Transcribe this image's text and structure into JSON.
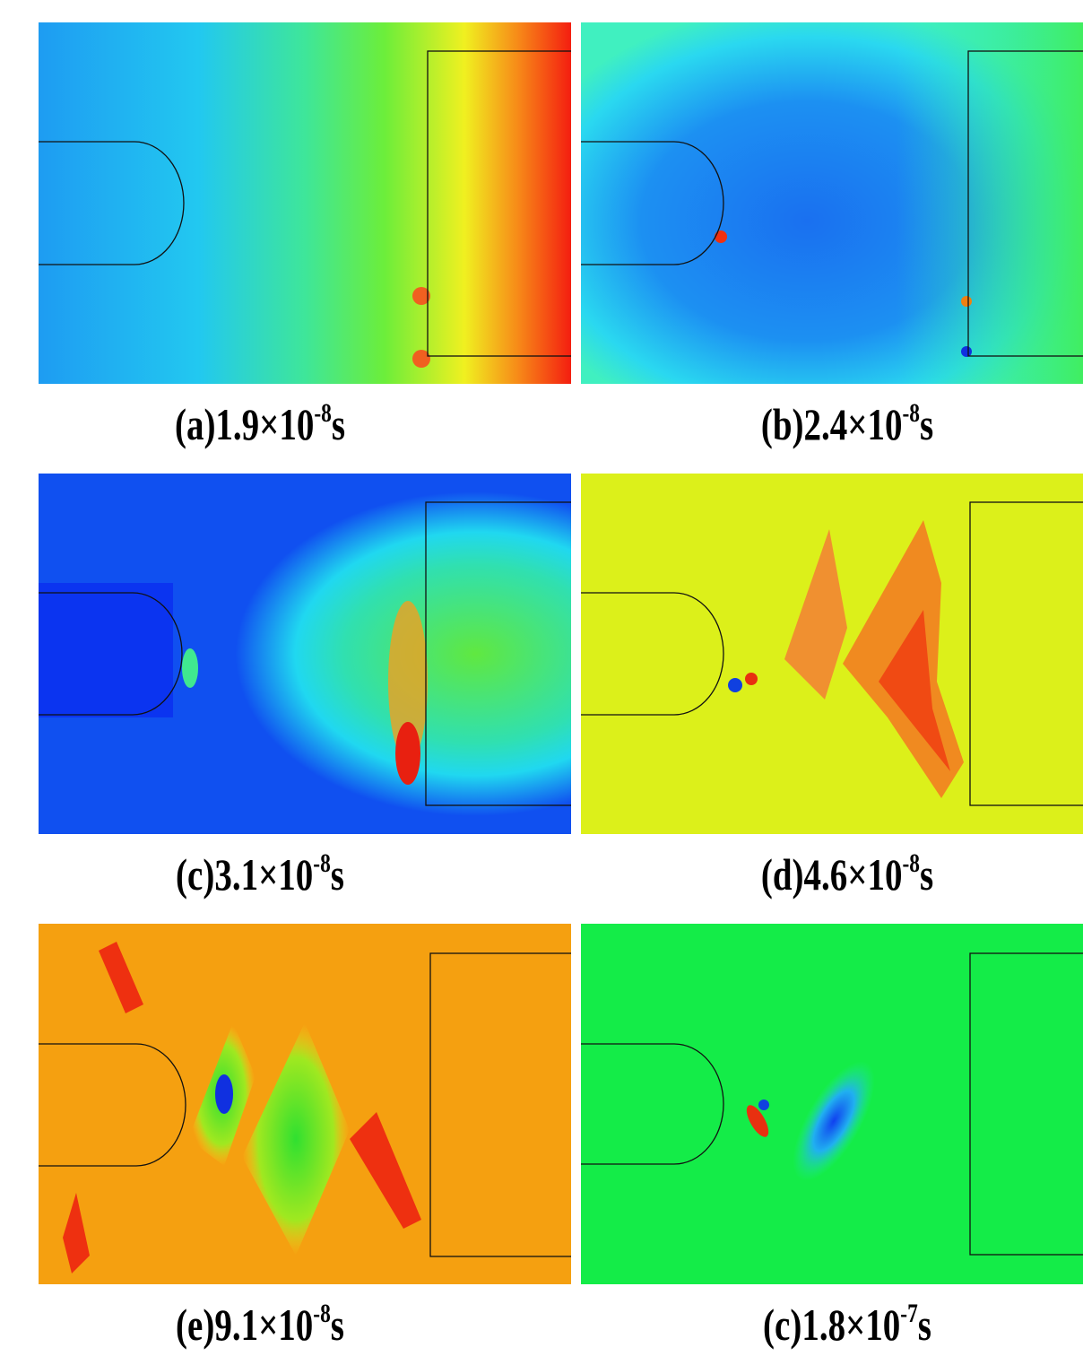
{
  "panels": [
    {
      "prefix": "(a)1.9×10",
      "exponent": "-8",
      "suffix": "s"
    },
    {
      "prefix": "(b)2.4×10",
      "exponent": "-8",
      "suffix": "s"
    },
    {
      "prefix": "(c)3.1×10",
      "exponent": "-8",
      "suffix": "s"
    },
    {
      "prefix": "(d)4.6×10",
      "exponent": "-8",
      "suffix": "s"
    },
    {
      "prefix": "(e)9.1×10",
      "exponent": "-8",
      "suffix": "s"
    },
    {
      "prefix": "(c)1.8×10",
      "exponent": "-7",
      "suffix": "s"
    }
  ]
}
